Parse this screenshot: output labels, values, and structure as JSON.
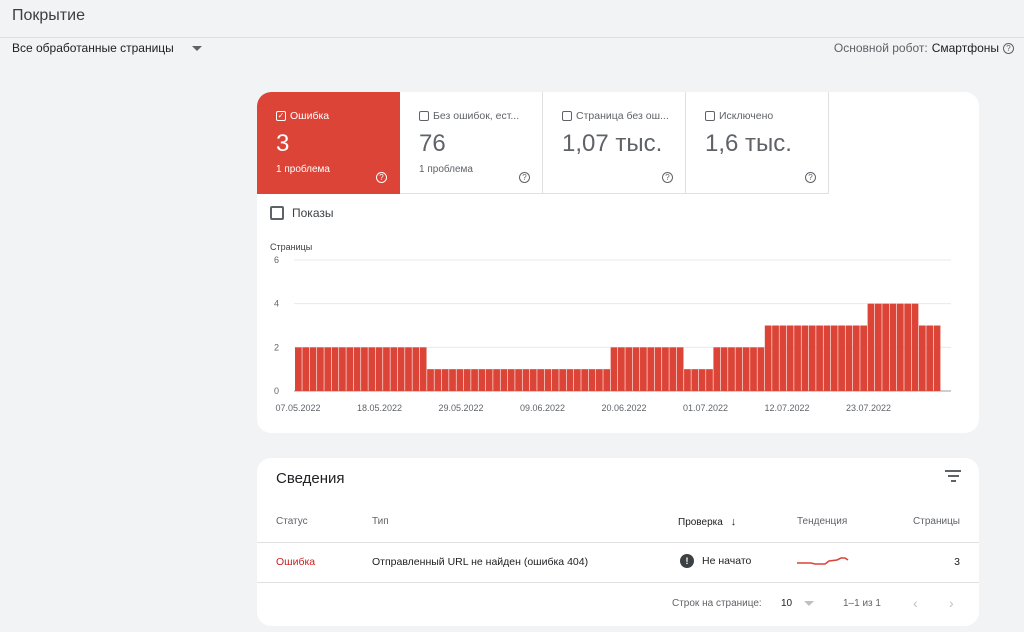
{
  "header": {
    "title": "Покрытие"
  },
  "filter": {
    "selected": "Все обработанные страницы",
    "robot_label": "Основной робот:",
    "robot_value": "Смартфоны"
  },
  "tiles": [
    {
      "label": "Ошибка",
      "value": "3",
      "sub": "1 проблема",
      "checked": true,
      "active": true
    },
    {
      "label": "Без ошибок, ест...",
      "value": "76",
      "sub": "1 проблема",
      "checked": false,
      "active": false
    },
    {
      "label": "Страница без ош...",
      "value": "1,07 тыс.",
      "sub": "",
      "checked": false,
      "active": false
    },
    {
      "label": "Исключено",
      "value": "1,6 тыс.",
      "sub": "",
      "checked": false,
      "active": false
    }
  ],
  "impressions_label": "Показы",
  "chart_data": {
    "type": "bar",
    "ylabel": "Страницы",
    "ylim": [
      0,
      6
    ],
    "yticks": [
      0,
      2,
      4,
      6
    ],
    "xticks": [
      "07.05.2022",
      "18.05.2022",
      "29.05.2022",
      "09.06.2022",
      "20.06.2022",
      "01.07.2022",
      "12.07.2022",
      "23.07.2022"
    ],
    "color": "#db4437",
    "grid": true,
    "values": [
      2,
      2,
      2,
      2,
      2,
      2,
      2,
      2,
      2,
      2,
      2,
      2,
      2,
      2,
      2,
      2,
      2,
      2,
      1,
      1,
      1,
      1,
      1,
      1,
      1,
      1,
      1,
      1,
      1,
      1,
      1,
      1,
      1,
      1,
      1,
      1,
      1,
      1,
      1,
      1,
      1,
      1,
      1,
      2,
      2,
      2,
      2,
      2,
      2,
      2,
      2,
      2,
      2,
      1,
      1,
      1,
      1,
      2,
      2,
      2,
      2,
      2,
      2,
      2,
      3,
      3,
      3,
      3,
      3,
      3,
      3,
      3,
      3,
      3,
      3,
      3,
      3,
      3,
      4,
      4,
      4,
      4,
      4,
      4,
      4,
      3,
      3,
      3
    ]
  },
  "details": {
    "title": "Сведения",
    "columns": [
      "Статус",
      "Тип",
      "Проверка",
      "Тенденция",
      "Страницы"
    ],
    "row": {
      "status": "Ошибка",
      "type": "Отправленный URL не найден (ошибка 404)",
      "check": "Не начато",
      "pages": "3"
    },
    "footer": {
      "rows_per_page_label": "Строк на странице:",
      "rows_per_page": "10",
      "range": "1–1 из 1"
    }
  },
  "colors": {
    "error": "#db4437",
    "error_text": "#c5221f"
  }
}
